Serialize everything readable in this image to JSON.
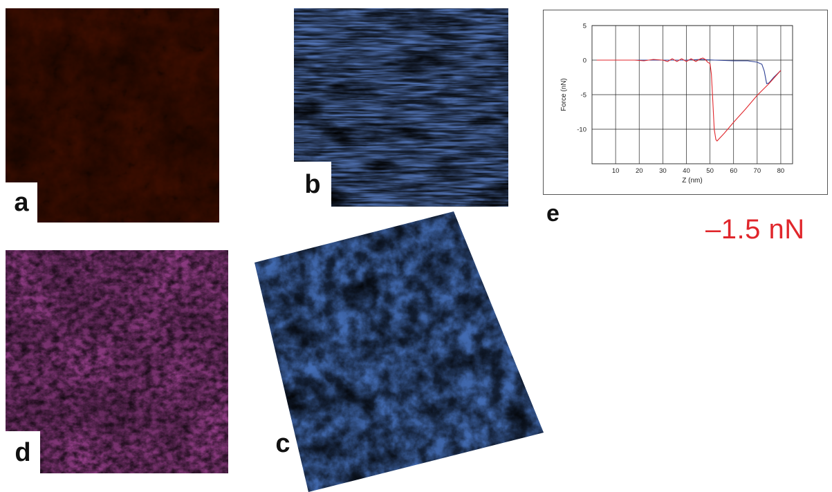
{
  "panels": {
    "a": {
      "label": "a",
      "colors": [
        "#3a0d00",
        "#8a3b00",
        "#d98a10",
        "#ffe090"
      ]
    },
    "b": {
      "label": "b",
      "colors": [
        "#5a80c8",
        "#c8478f",
        "#f2e020"
      ]
    },
    "c": {
      "label": "c",
      "colors": [
        "#4a78c8",
        "#b84a90",
        "#f0e030"
      ]
    },
    "d": {
      "label": "d",
      "colors": [
        "#2b2f80",
        "#b54aa0",
        "#f0c0e8"
      ]
    },
    "e": {
      "label": "e"
    }
  },
  "force_value": "–1.5 nN",
  "chart_data": {
    "type": "line",
    "xlabel": "Z (nm)",
    "ylabel": "Force (nN)",
    "xlim": [
      0,
      85
    ],
    "ylim": [
      -15,
      5
    ],
    "x_ticks": [
      10,
      20,
      30,
      40,
      50,
      60,
      70,
      80
    ],
    "y_ticks": [
      5,
      0,
      -5,
      -10
    ],
    "grid": true,
    "series": [
      {
        "color": "#2c3f94",
        "points": [
          [
            2,
            0
          ],
          [
            10,
            0
          ],
          [
            20,
            0
          ],
          [
            30,
            0
          ],
          [
            40,
            0
          ],
          [
            46,
            0.1
          ],
          [
            52,
            0
          ],
          [
            60,
            -0.1
          ],
          [
            66,
            -0.1
          ],
          [
            70,
            -0.3
          ],
          [
            72,
            -0.6
          ],
          [
            73,
            -1.6
          ],
          [
            74,
            -3.4
          ],
          [
            75,
            -3.3
          ],
          [
            77,
            -2.5
          ],
          [
            80,
            -1.5
          ]
        ]
      },
      {
        "color": "#e0262b",
        "points": [
          [
            2,
            0
          ],
          [
            10,
            0
          ],
          [
            18,
            0
          ],
          [
            22,
            -0.1
          ],
          [
            26,
            0.1
          ],
          [
            30,
            0
          ],
          [
            32,
            -0.2
          ],
          [
            34,
            0.2
          ],
          [
            36,
            -0.2
          ],
          [
            38,
            0.2
          ],
          [
            40,
            -0.2
          ],
          [
            42,
            0.2
          ],
          [
            44,
            -0.2
          ],
          [
            46,
            0.2
          ],
          [
            47,
            0.3
          ],
          [
            48,
            0.1
          ],
          [
            49,
            -0.3
          ],
          [
            50,
            -0.5
          ],
          [
            50.6,
            -2
          ],
          [
            51.2,
            -6
          ],
          [
            51.8,
            -10
          ],
          [
            52.5,
            -11.5
          ],
          [
            53,
            -11.7
          ],
          [
            56,
            -10.6
          ],
          [
            60,
            -9
          ],
          [
            65,
            -7.1
          ],
          [
            70,
            -5.1
          ],
          [
            75,
            -3.4
          ],
          [
            80,
            -1.5
          ]
        ]
      }
    ]
  }
}
